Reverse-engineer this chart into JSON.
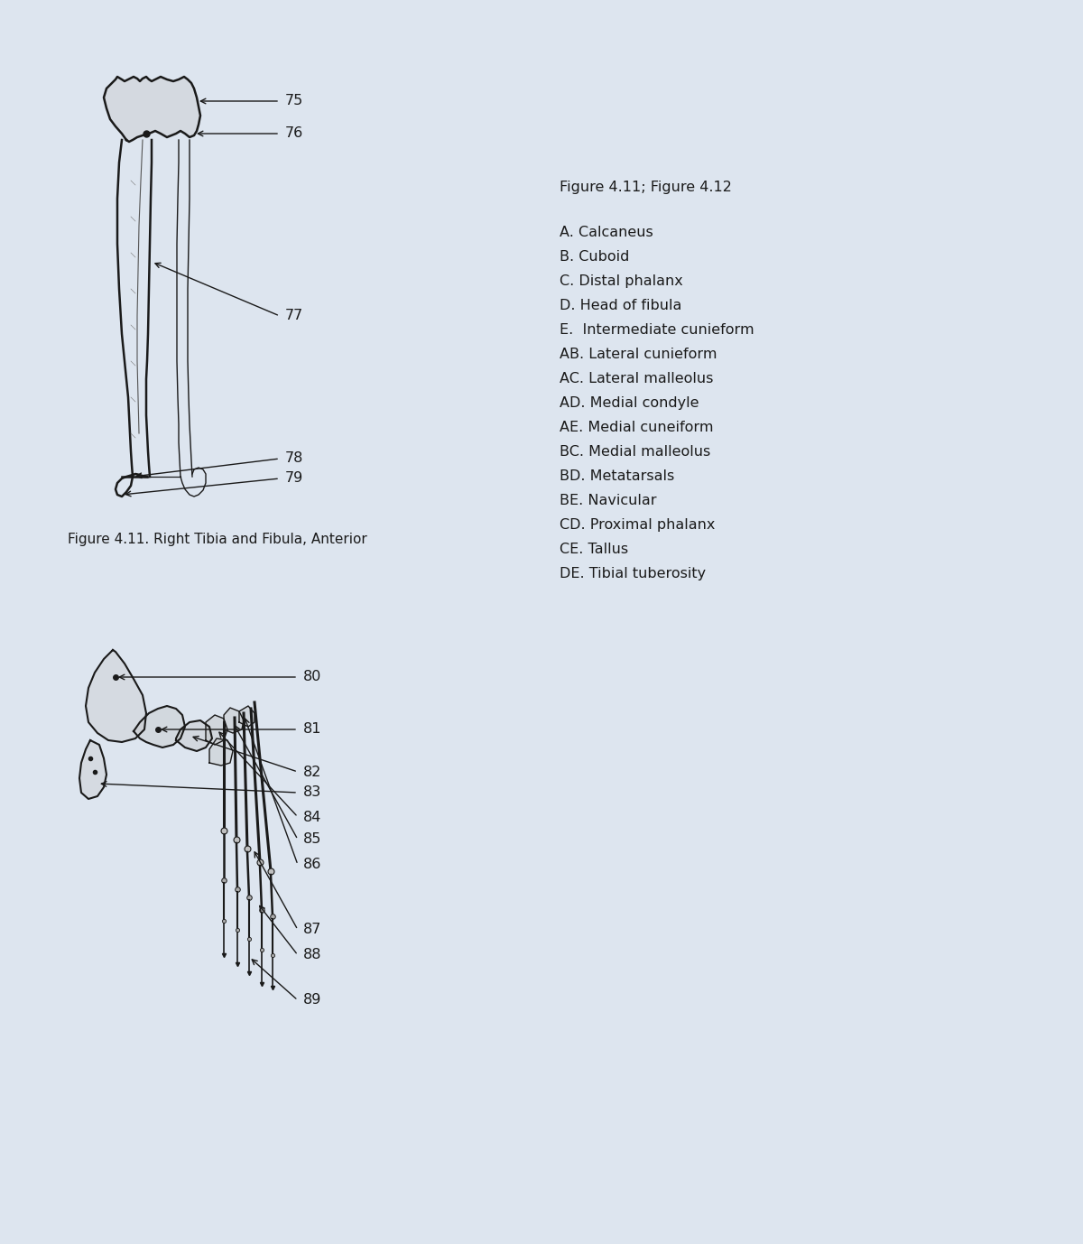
{
  "background_color": "#dde5ef",
  "fig_width": 12.0,
  "fig_height": 13.78,
  "title1": "Figure 4.11. Right Tibia and Fibula, Anterior",
  "legend_title": "Figure 4.11; Figure 4.12",
  "legend_items": [
    "A. Calcaneus",
    "B. Cuboid",
    "C. Distal phalanx",
    "D. Head of fibula",
    "E.  Intermediate cunieform",
    "AB. Lateral cunieform",
    "AC. Lateral malleolus",
    "AD. Medial condyle",
    "AE. Medial cuneiform",
    "BC. Medial malleolus",
    "BD. Metatarsals",
    "BE. Navicular",
    "CD. Proximal phalanx",
    "CE. Tallus",
    "DE. Tibial tuberosity"
  ],
  "font_size_legend": 11.5,
  "font_size_labels": 11.5,
  "font_size_title": 11.0
}
